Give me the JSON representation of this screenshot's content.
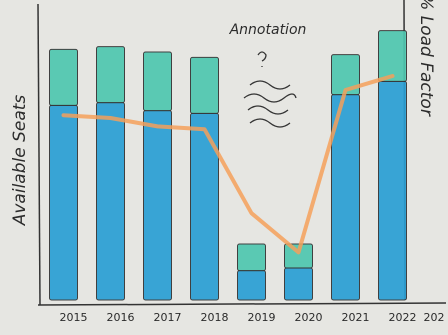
{
  "chart_data": {
    "type": "bar",
    "annotation": "Annotation",
    "y_label": "Available Seats",
    "y2_label": "% Load Factor",
    "categories": [
      "2015",
      "2016",
      "2017",
      "2018",
      "2019",
      "2020",
      "2021",
      "2022",
      "202"
    ],
    "stacked": true,
    "series": [
      {
        "color": "#2a9fd4",
        "values": [
          73,
          74,
          71,
          70,
          11,
          12,
          77,
          82,
          null
        ]
      },
      {
        "color": "#4fc7b0",
        "values": [
          21,
          21,
          22,
          21,
          10,
          9,
          15,
          19,
          null
        ]
      },
      {
        "type": "line",
        "axis": "y2",
        "color": "#f4a05a",
        "values": [
          66,
          65,
          62,
          61,
          31,
          17,
          75,
          80,
          null
        ]
      }
    ],
    "ylim": [
      0,
      105
    ],
    "y2lim": [
      0,
      100
    ]
  }
}
